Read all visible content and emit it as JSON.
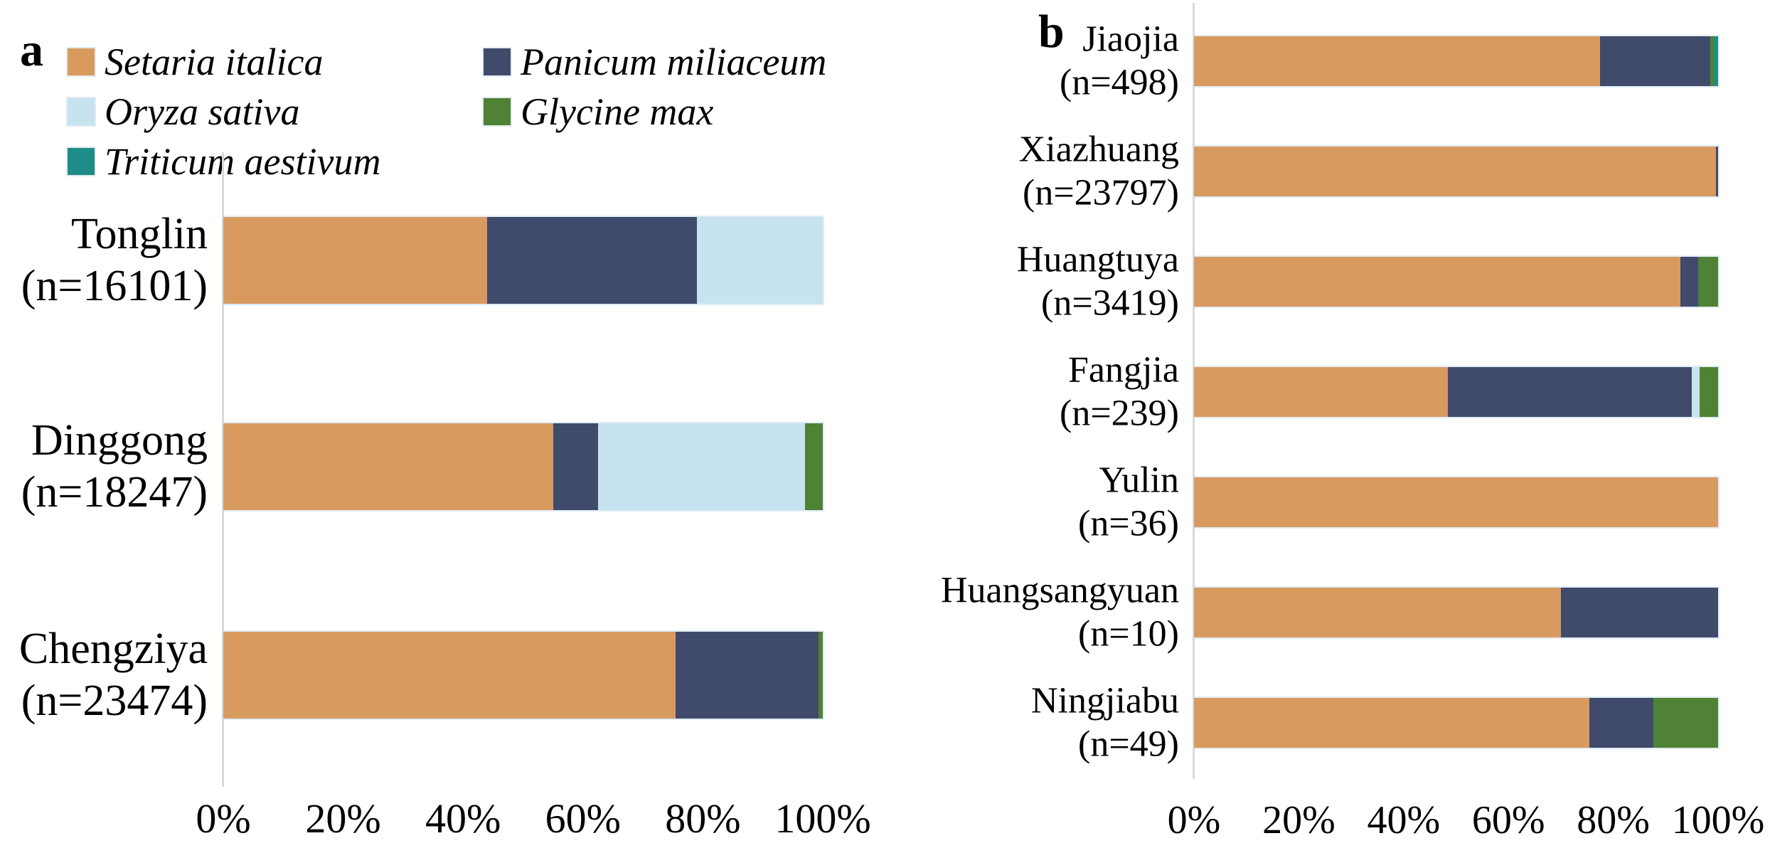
{
  "figure": {
    "panel_a_label": "a",
    "panel_b_label": "b"
  },
  "legend": {
    "items": [
      {
        "label": "Setaria italica",
        "color": "#D99A60"
      },
      {
        "label": "Panicum miliaceum",
        "color": "#404A6B"
      },
      {
        "label": "Oryza sativa",
        "color": "#C8E3F0"
      },
      {
        "label": "Glycine max",
        "color": "#4F8234"
      },
      {
        "label": "Triticum aestivum",
        "color": "#1E8D87"
      }
    ]
  },
  "chart_data": [
    {
      "type": "bar",
      "panel": "a",
      "orientation": "horizontal_stacked",
      "stacked": true,
      "xlim": [
        0,
        100
      ],
      "x_ticks": [
        "0%",
        "20%",
        "40%",
        "60%",
        "80%",
        "100%"
      ],
      "legend_position": "top-left",
      "grid": false,
      "categories": [
        {
          "site": "Tonglin",
          "n_label": "(n=16101)"
        },
        {
          "site": "Dinggong",
          "n_label": "(n=18247)"
        },
        {
          "site": "Chengziya",
          "n_label": "(n=23474)"
        }
      ],
      "series": [
        {
          "name": "Setaria italica",
          "color": "#D99A60",
          "values": [
            44.0,
            55.0,
            75.5
          ]
        },
        {
          "name": "Panicum miliaceum",
          "color": "#404A6B",
          "values": [
            35.0,
            7.5,
            23.8
          ]
        },
        {
          "name": "Oryza sativa",
          "color": "#C8E3F0",
          "values": [
            21.0,
            34.5,
            0
          ]
        },
        {
          "name": "Glycine max",
          "color": "#4F8234",
          "values": [
            0,
            3.0,
            0.7
          ]
        },
        {
          "name": "Triticum aestivum",
          "color": "#1E8D87",
          "values": [
            0,
            0,
            0
          ]
        }
      ],
      "values_unit": "percent"
    },
    {
      "type": "bar",
      "panel": "b",
      "orientation": "horizontal_stacked",
      "stacked": true,
      "xlim": [
        0,
        100
      ],
      "x_ticks": [
        "0%",
        "20%",
        "40%",
        "60%",
        "80%",
        "100%"
      ],
      "grid": false,
      "categories": [
        {
          "site": "Jiaojia",
          "n_label": "(n=498)"
        },
        {
          "site": "Xiazhuang",
          "n_label": "(n=23797)"
        },
        {
          "site": "Huangtuya",
          "n_label": "(n=3419)"
        },
        {
          "site": "Fangjia",
          "n_label": "(n=239)"
        },
        {
          "site": "Yulin",
          "n_label": "(n=36)"
        },
        {
          "site": "Huangsangyuan",
          "n_label": "(n=10)"
        },
        {
          "site": "Ningjiabu",
          "n_label": "(n=49)"
        }
      ],
      "series": [
        {
          "name": "Setaria italica",
          "color": "#D99A60",
          "values": [
            77.5,
            99.6,
            92.8,
            48.5,
            100,
            70.0,
            75.5
          ]
        },
        {
          "name": "Panicum miliaceum",
          "color": "#404A6B",
          "values": [
            21.0,
            0.4,
            3.4,
            46.5,
            0,
            30.0,
            12.2
          ]
        },
        {
          "name": "Oryza sativa",
          "color": "#C8E3F0",
          "values": [
            0,
            0,
            0,
            1.5,
            0,
            0,
            0
          ]
        },
        {
          "name": "Glycine max",
          "color": "#4F8234",
          "values": [
            0.7,
            0,
            3.8,
            3.5,
            0,
            0,
            12.3
          ]
        },
        {
          "name": "Triticum aestivum",
          "color": "#1E8D87",
          "values": [
            0.8,
            0,
            0,
            0,
            0,
            0,
            0
          ]
        }
      ],
      "values_unit": "percent"
    }
  ]
}
